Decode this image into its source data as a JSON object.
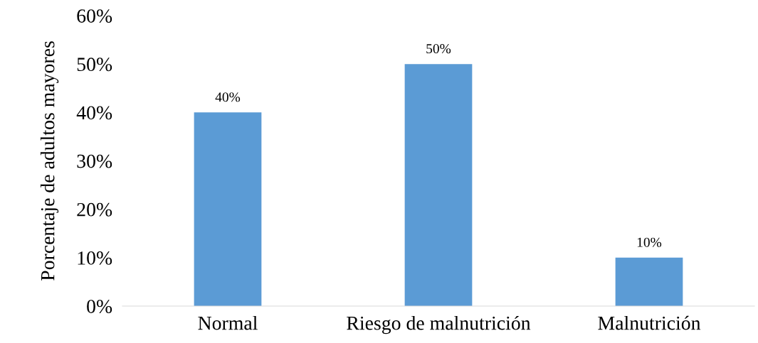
{
  "chart_data": {
    "type": "bar",
    "ylabel": "Porcentaje de adultos mayores",
    "categories": [
      "Normal",
      "Riesgo de malnutrición",
      "Malnutrición"
    ],
    "values": [
      40,
      50,
      10
    ],
    "color": "#5b9bd5",
    "value_labels": [
      "40%",
      "50%",
      "10%"
    ],
    "ylim": [
      0,
      60
    ],
    "yticks": [
      {
        "value": 0,
        "label": "0%"
      },
      {
        "value": 10,
        "label": "10%"
      },
      {
        "value": 20,
        "label": "20%"
      },
      {
        "value": 30,
        "label": "30%"
      },
      {
        "value": 40,
        "label": "40%"
      },
      {
        "value": 50,
        "label": "50%"
      },
      {
        "value": 60,
        "label": "60%"
      }
    ],
    "grid": false,
    "legend": false
  }
}
